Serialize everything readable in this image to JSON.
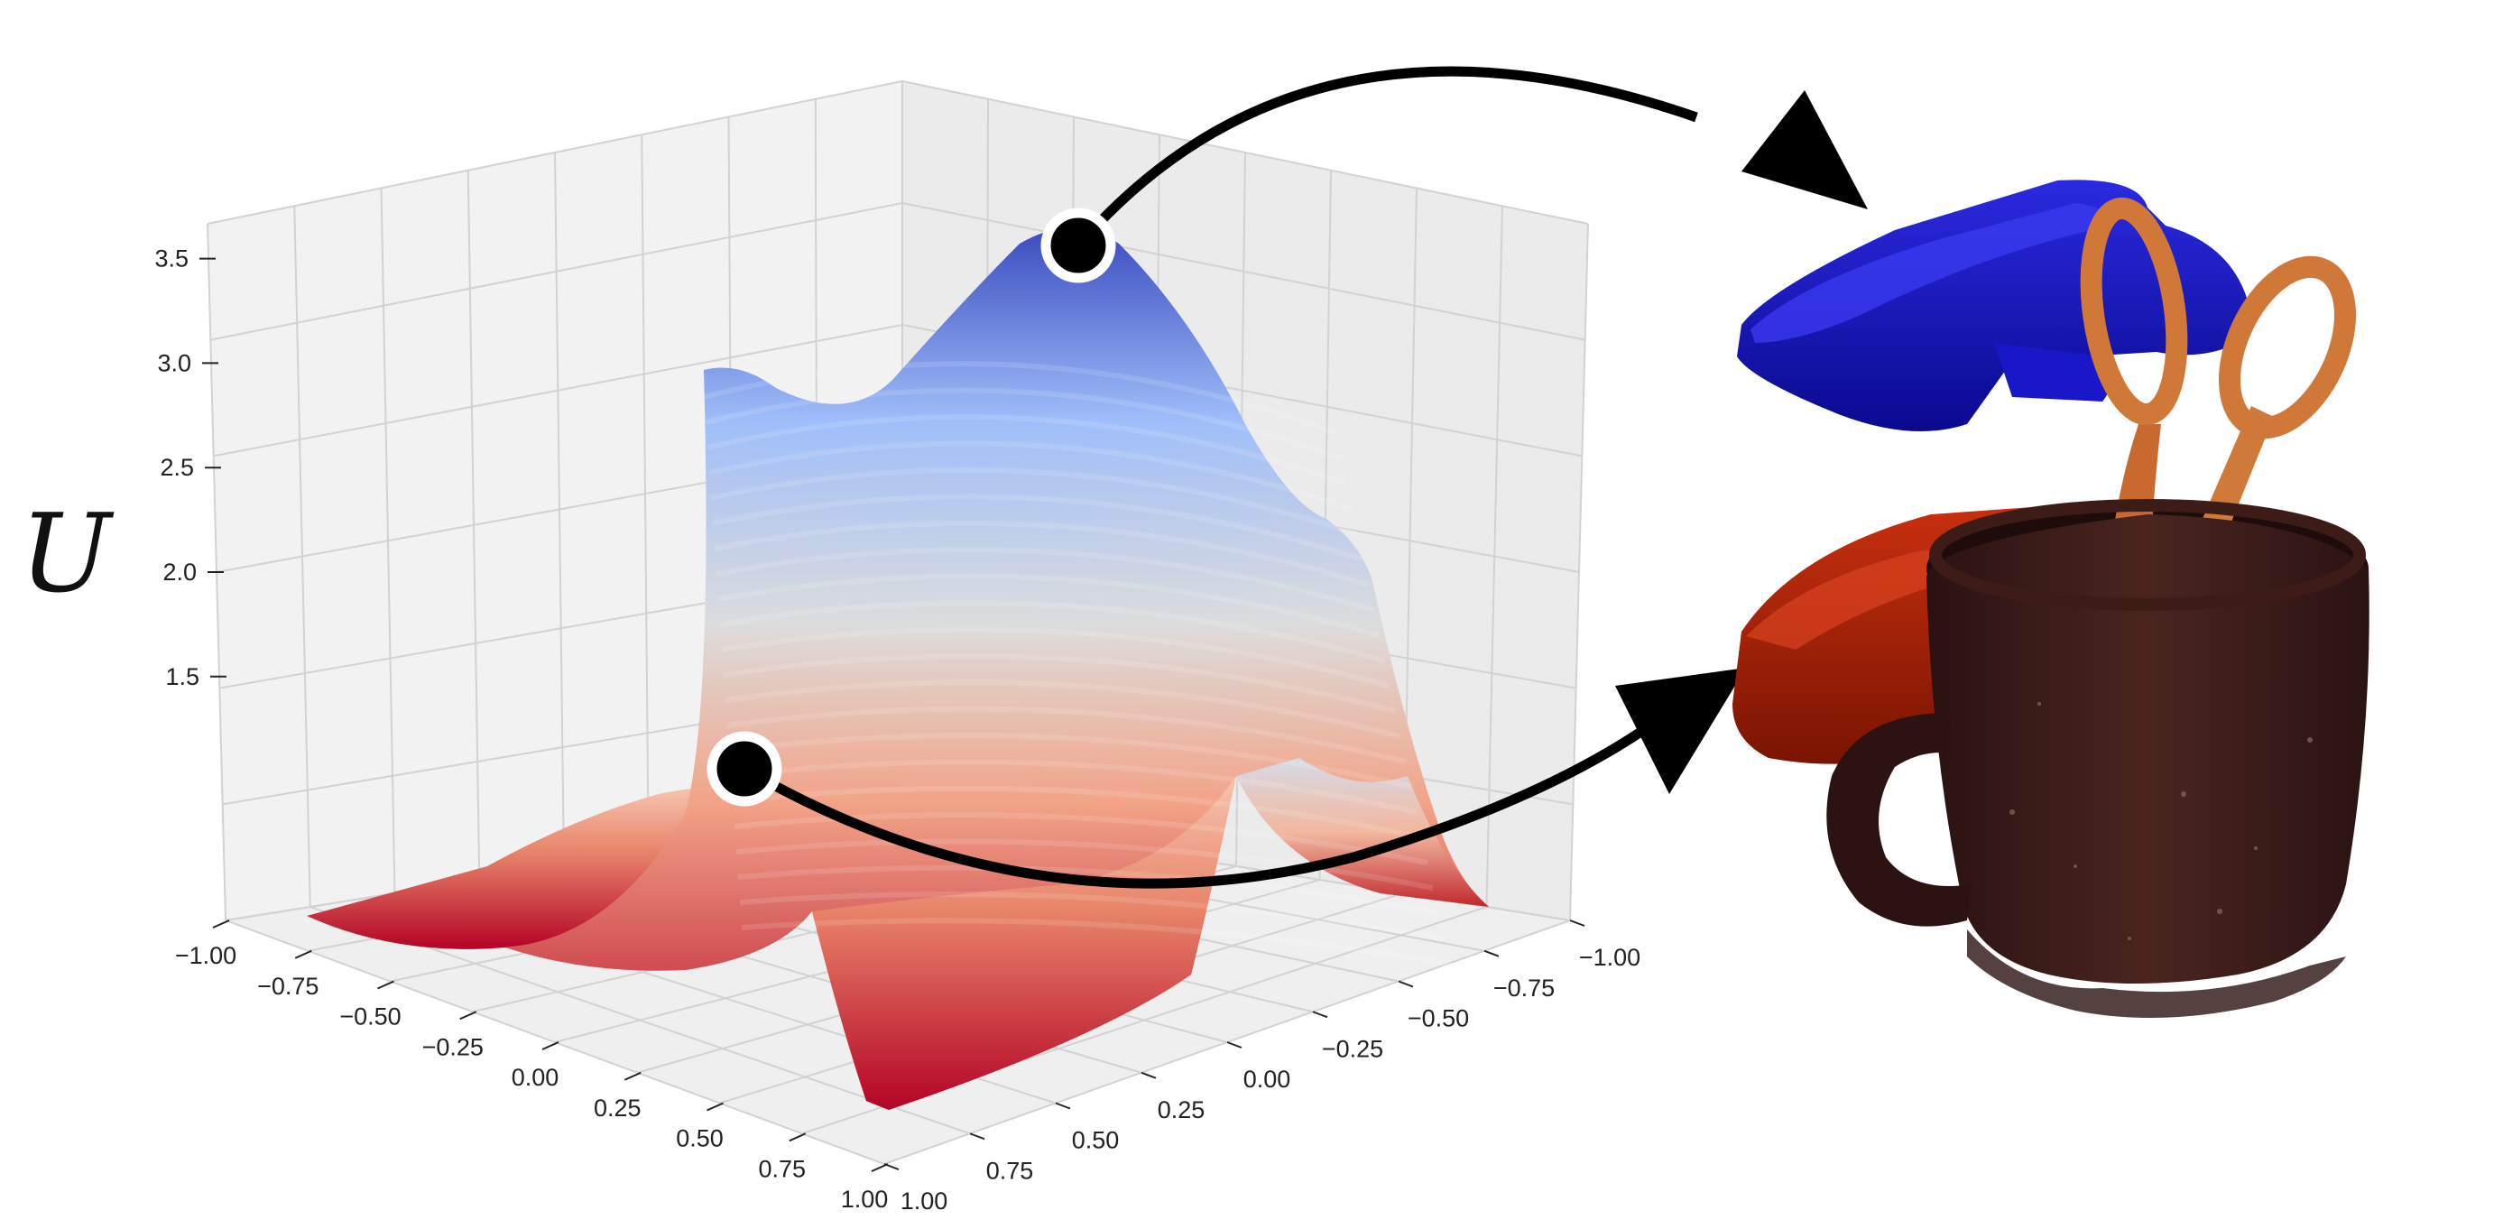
{
  "figure": {
    "zlabel": "U",
    "z_ticks": [
      "1.5",
      "2.0",
      "2.5",
      "3.0",
      "3.5"
    ],
    "x_ticks": [
      "−1.00",
      "−0.75",
      "−0.50",
      "−0.25",
      "0.00",
      "0.25",
      "0.50",
      "0.75",
      "1.00"
    ],
    "y_ticks": [
      "1.00",
      "0.75",
      "0.50",
      "0.25",
      "0.00",
      "−0.25",
      "−0.50",
      "−0.75",
      "−1.00"
    ],
    "colormap": [
      "#b40426",
      "#f7b89c",
      "#dddddd",
      "#aac7fd",
      "#3b4cc0"
    ]
  },
  "chart_data": {
    "type": "surface",
    "xlim": [
      -1.0,
      1.0
    ],
    "ylim": [
      -1.0,
      1.0
    ],
    "zlim": [
      1.0,
      3.9
    ],
    "surface_peaks": [
      {
        "x": -0.2,
        "y": -0.4,
        "z": 3.85
      },
      {
        "x": 0.25,
        "y": 0.1,
        "z": 1.65
      },
      {
        "x": -0.6,
        "y": 0.5,
        "z": 3.0
      }
    ],
    "grid": true
  },
  "scene": {
    "objects": [
      "blue-gripper",
      "red-gripper",
      "scissors",
      "mug"
    ],
    "colors": {
      "blue_gripper": "#1010b8",
      "red_gripper": "#b01e08",
      "scissors": "#d2783a",
      "mug": "#3a1d18"
    }
  }
}
